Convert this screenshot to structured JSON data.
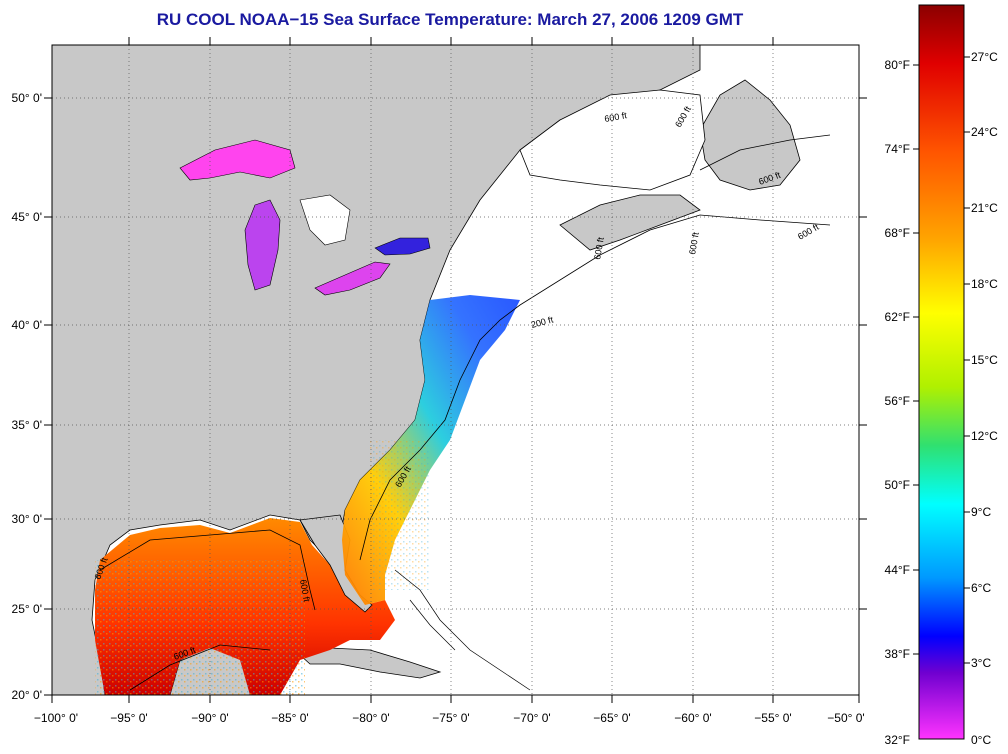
{
  "map": {
    "title": "RU COOL  NOAA−15  Sea Surface Temperature:  March 27, 2006 1209 GMT",
    "lat_ticks": [
      "50° 0'",
      "45° 0'",
      "40° 0'",
      "35° 0'",
      "30° 0'",
      "25° 0'",
      "20° 0'"
    ],
    "lon_ticks": [
      "−100° 0'",
      "−95° 0'",
      "−90° 0'",
      "−85° 0'",
      "−80° 0'",
      "−75° 0'",
      "−70° 0'",
      "−65° 0'",
      "−60° 0'",
      "−55° 0'",
      "−50° 0'"
    ],
    "contour_labels": [
      "600 ft",
      "600 ft",
      "600 ft",
      "600 ft",
      "600 ft",
      "200 ft",
      "600 ft",
      "600 ft",
      "600 ft",
      "600 ft",
      "600 ft"
    ],
    "colors": {
      "land": "#c8c8c8",
      "ocean_nodata": "#ffffff",
      "title": "#1a1aa0"
    }
  },
  "colorbar": {
    "fahrenheit": [
      "80°F",
      "74°F",
      "68°F",
      "62°F",
      "56°F",
      "50°F",
      "44°F",
      "38°F",
      "32°F"
    ],
    "celsius": [
      "27°C",
      "24°C",
      "21°C",
      "18°C",
      "15°C",
      "12°C",
      "9°C",
      "6°C",
      "3°C",
      "0°C"
    ],
    "gradient": [
      "#8b0000",
      "#e00000",
      "#ff5500",
      "#ffa500",
      "#ffff00",
      "#b0f000",
      "#30e070",
      "#00ffff",
      "#0099ff",
      "#0000ff",
      "#7000d0",
      "#ff33ff"
    ]
  }
}
